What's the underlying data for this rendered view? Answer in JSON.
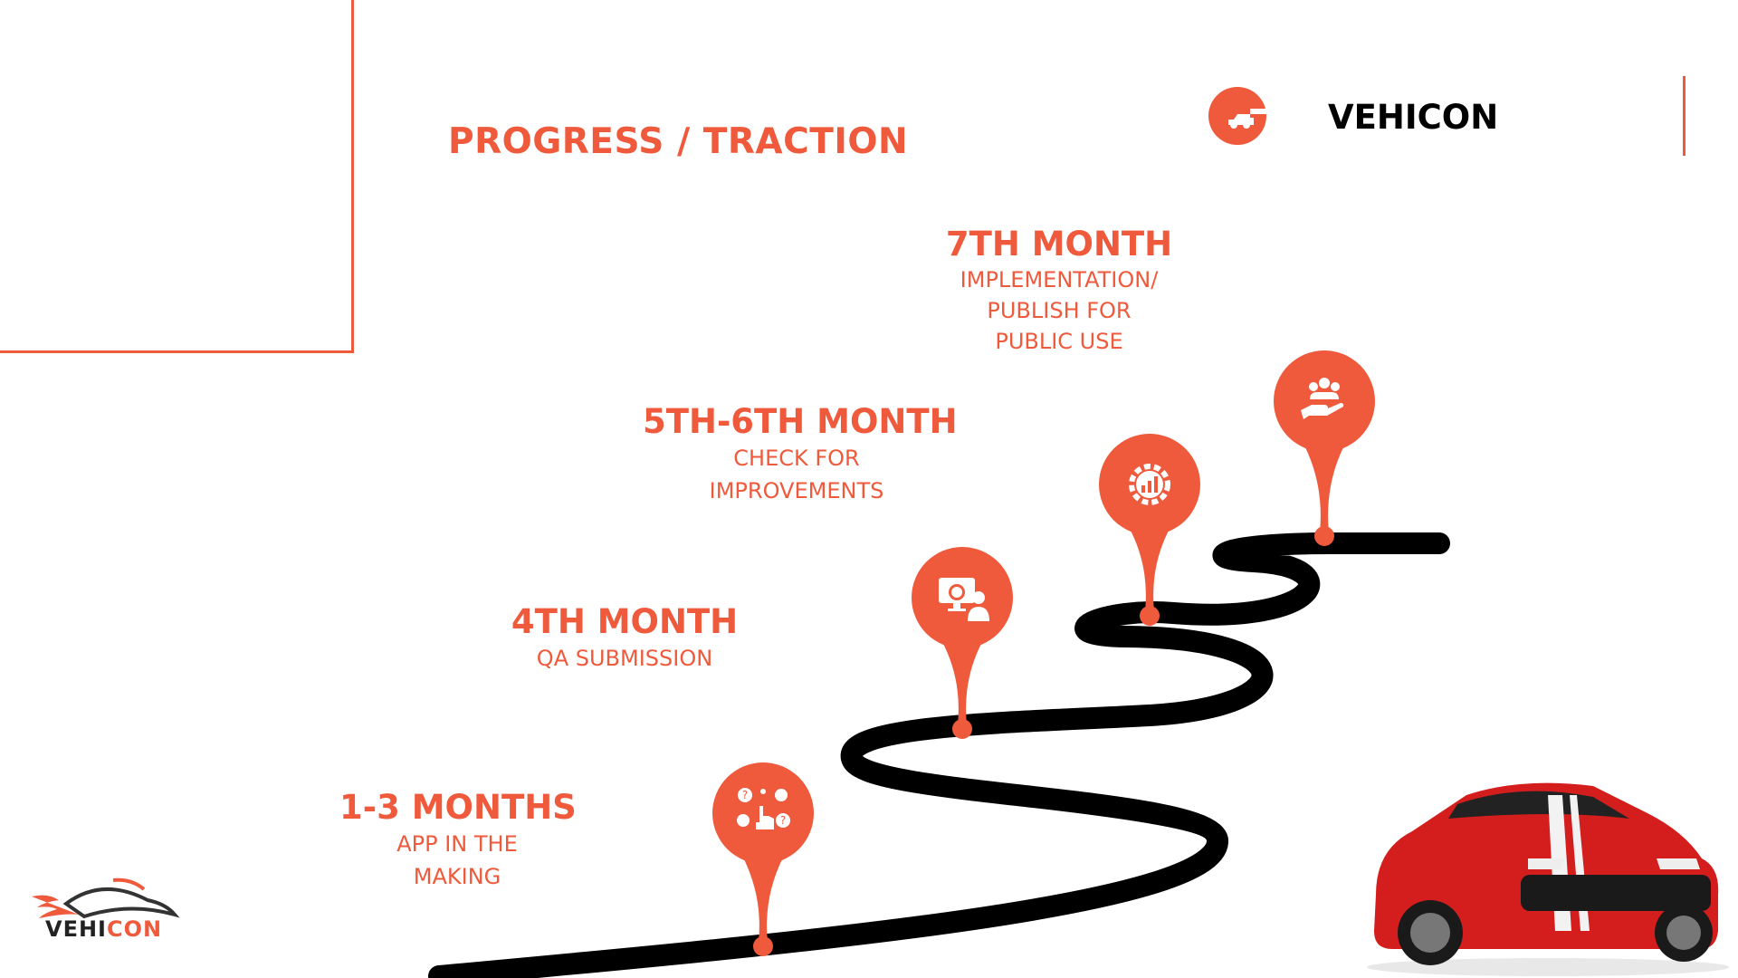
{
  "slide": {
    "title": "PROGRESS / TRACTION",
    "brand_name": "VEHICON",
    "accent_color": "#ef5a3c"
  },
  "milestones": [
    {
      "heading": "1-3 MONTHS",
      "description_lines": [
        "APP IN THE",
        "MAKING"
      ],
      "icon": "question-hand-icon"
    },
    {
      "heading": "4TH MONTH",
      "description_lines": [
        "QA SUBMISSION"
      ],
      "icon": "monitor-user-icon"
    },
    {
      "heading": "5TH-6TH MONTH",
      "description_lines": [
        "CHECK FOR",
        "IMPROVEMENTS"
      ],
      "icon": "gear-chart-icon"
    },
    {
      "heading": "7TH MONTH",
      "description_lines": [
        "IMPLEMENTATION/",
        "PUBLISH FOR",
        "PUBLIC USE"
      ],
      "icon": "hand-people-icon"
    }
  ],
  "logo": {
    "text_part1": "VEHI",
    "text_part2": "CON"
  }
}
